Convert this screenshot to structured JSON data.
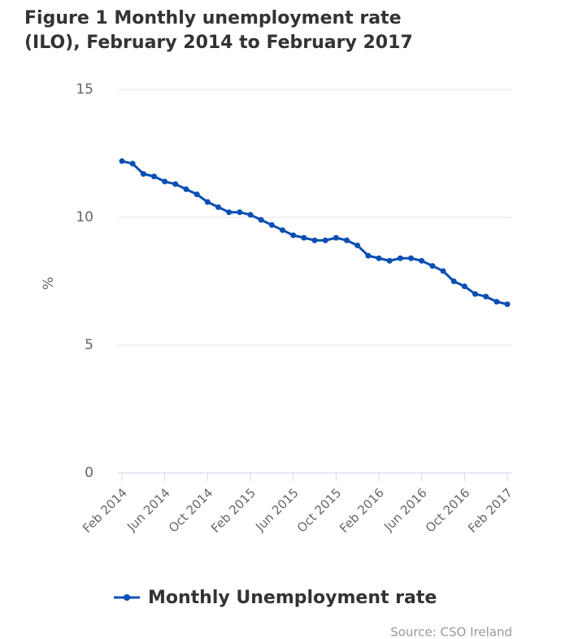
{
  "chart_data": {
    "type": "line",
    "title": "Figure 1 Monthly unemployment rate (ILO), February 2014 to February 2017",
    "y_label": "%",
    "source": "Source: CSO Ireland",
    "categories": [
      "Feb 2014",
      null,
      null,
      null,
      "Jun 2014",
      null,
      null,
      null,
      "Oct 2014",
      null,
      null,
      null,
      "Feb 2015",
      null,
      null,
      null,
      "Jun 2015",
      null,
      null,
      null,
      "Oct 2015",
      null,
      null,
      null,
      "Feb 2016",
      null,
      null,
      null,
      "Jun 2016",
      null,
      null,
      null,
      "Oct 2016",
      null,
      null,
      null,
      "Feb 2017"
    ],
    "series": [
      {
        "name": "Monthly Unemployment rate",
        "color": "#0b4fb3",
        "values": [
          12.2,
          12.1,
          11.7,
          11.6,
          11.4,
          11.3,
          11.1,
          10.9,
          10.6,
          10.4,
          10.2,
          10.2,
          10.1,
          9.9,
          9.7,
          9.5,
          9.3,
          9.2,
          9.1,
          9.1,
          9.2,
          9.1,
          8.9,
          8.5,
          8.4,
          8.3,
          8.4,
          8.4,
          8.3,
          8.1,
          7.9,
          7.5,
          7.3,
          7.0,
          6.9,
          6.7,
          6.6
        ]
      }
    ],
    "ylim": [
      0,
      15
    ],
    "yticks": [
      0,
      5,
      10,
      15
    ],
    "grid": true
  }
}
